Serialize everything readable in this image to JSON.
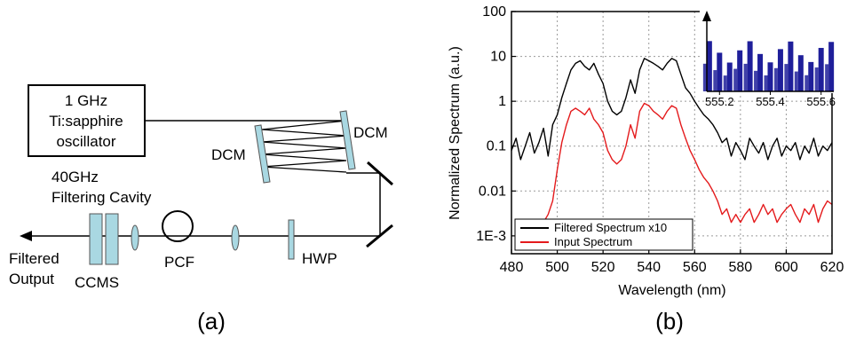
{
  "panel_a": {
    "caption": "(a)",
    "oscillator_line1": "1 GHz",
    "oscillator_line2": "Ti:sapphire",
    "oscillator_line3": "oscillator",
    "dcm_left": "DCM",
    "dcm_right": "DCM",
    "cavity_line1": "40GHz",
    "cavity_line2": "Filtering Cavity",
    "output_line1": "Filtered",
    "output_line2": "Output",
    "ccms": "CCMS",
    "pcf": "PCF",
    "hwp": "HWP"
  },
  "panel_b": {
    "caption": "(b)"
  },
  "chart_data": {
    "type": "line",
    "xlabel": "Wavelength (nm)",
    "ylabel": "Normalized Spectrum (a.u.)",
    "xlim": [
      480,
      620
    ],
    "ylim": [
      0.0004,
      100
    ],
    "yscale": "log",
    "grid": true,
    "legend_position": "bottom-left",
    "x_ticks": [
      "480",
      "500",
      "520",
      "540",
      "560",
      "580",
      "600",
      "620"
    ],
    "y_ticks": [
      "1E-3",
      "0.01",
      "0.1",
      "1",
      "10",
      "100"
    ],
    "series": [
      {
        "name": "Filtered Spectrum x10",
        "color": "#000000",
        "x": [
          480,
          482,
          484,
          486,
          488,
          490,
          492,
          494,
          496,
          498,
          500,
          502,
          504,
          506,
          508,
          510,
          512,
          514,
          516,
          518,
          520,
          522,
          524,
          526,
          528,
          530,
          532,
          534,
          536,
          538,
          540,
          542,
          544,
          546,
          548,
          550,
          552,
          554,
          556,
          558,
          560,
          562,
          564,
          566,
          568,
          570,
          572,
          574,
          576,
          578,
          580,
          582,
          584,
          586,
          588,
          590,
          592,
          594,
          596,
          598,
          600,
          602,
          604,
          606,
          608,
          610,
          612,
          614,
          616,
          618,
          620
        ],
        "y": [
          0.08,
          0.15,
          0.05,
          0.1,
          0.2,
          0.07,
          0.12,
          0.25,
          0.06,
          0.3,
          0.5,
          1.2,
          2.5,
          5,
          7,
          8,
          6,
          5,
          7,
          4,
          2.5,
          1,
          0.6,
          0.5,
          0.6,
          1.2,
          3,
          1.5,
          5,
          9,
          8,
          7,
          6,
          5,
          7,
          9,
          8,
          4,
          2,
          1.5,
          1,
          0.7,
          0.5,
          0.4,
          0.3,
          0.2,
          0.12,
          0.15,
          0.06,
          0.12,
          0.08,
          0.05,
          0.15,
          0.1,
          0.07,
          0.12,
          0.05,
          0.1,
          0.15,
          0.06,
          0.1,
          0.08,
          0.12,
          0.05,
          0.1,
          0.07,
          0.15,
          0.06,
          0.1,
          0.08,
          0.12
        ]
      },
      {
        "name": "Input Spectrum",
        "color": "#e41a1c",
        "x": [
          484,
          486,
          488,
          490,
          492,
          494,
          496,
          498,
          500,
          502,
          504,
          506,
          508,
          510,
          512,
          514,
          516,
          518,
          520,
          522,
          524,
          526,
          528,
          530,
          532,
          534,
          536,
          538,
          540,
          542,
          544,
          546,
          548,
          550,
          552,
          554,
          556,
          558,
          560,
          562,
          564,
          566,
          568,
          570,
          572,
          574,
          576,
          578,
          580,
          582,
          584,
          586,
          588,
          590,
          592,
          594,
          596,
          598,
          600,
          602,
          604,
          606,
          608,
          610,
          612,
          614,
          616,
          618,
          620
        ],
        "y": [
          0.0007,
          0.001,
          0.0006,
          0.0015,
          0.0009,
          0.002,
          0.003,
          0.006,
          0.03,
          0.12,
          0.3,
          0.6,
          0.7,
          0.6,
          0.5,
          0.7,
          0.4,
          0.3,
          0.2,
          0.08,
          0.05,
          0.04,
          0.05,
          0.1,
          0.3,
          0.15,
          0.6,
          0.9,
          0.8,
          0.6,
          0.5,
          0.4,
          0.6,
          0.8,
          0.7,
          0.3,
          0.15,
          0.08,
          0.05,
          0.03,
          0.02,
          0.015,
          0.01,
          0.006,
          0.003,
          0.004,
          0.002,
          0.003,
          0.002,
          0.003,
          0.004,
          0.002,
          0.003,
          0.005,
          0.003,
          0.004,
          0.002,
          0.003,
          0.004,
          0.005,
          0.003,
          0.002,
          0.004,
          0.003,
          0.005,
          0.002,
          0.004,
          0.006,
          0.005
        ]
      }
    ],
    "inset": {
      "type": "bar",
      "color": "#1f1f9a",
      "x_ticks": [
        "555.2",
        "555.4",
        "555.6"
      ],
      "xlim": [
        555.15,
        555.65
      ],
      "peak_spacing_nm": 0.04
    }
  }
}
